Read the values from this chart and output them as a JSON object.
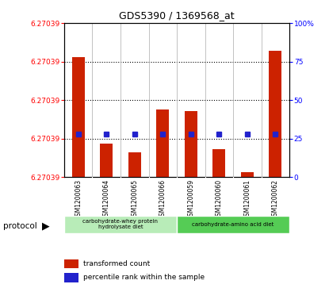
{
  "title": "GDS5390 / 1369568_at",
  "samples": [
    "GSM1200063",
    "GSM1200064",
    "GSM1200065",
    "GSM1200066",
    "GSM1200059",
    "GSM1200060",
    "GSM1200061",
    "GSM1200062"
  ],
  "red_values_pct": [
    78,
    22,
    16,
    44,
    43,
    18,
    3,
    82
  ],
  "blue_percentiles": [
    28,
    28,
    28,
    28,
    28,
    28,
    28,
    28
  ],
  "y_left_labels": [
    "6.27039",
    "6.27039",
    "6.27039",
    "6.27039",
    "6.27039"
  ],
  "y_left_tick_pct": [
    100,
    75,
    50,
    25,
    0
  ],
  "right_y_ticks": [
    100,
    75,
    50,
    25,
    0
  ],
  "right_y_labels": [
    "100%",
    "75",
    "50",
    "25",
    "0"
  ],
  "grid_pct": [
    75,
    50,
    25
  ],
  "bar_color": "#cc2200",
  "blue_color": "#2222cc",
  "group1_color": "#b8ecb8",
  "group2_color": "#55cc55",
  "group1_label": "carbohydrate-whey protein\nhydrolysate diet",
  "group2_label": "carbohydrate-amino acid diet",
  "legend_red": "transformed count",
  "legend_blue": "percentile rank within the sample",
  "xtick_bg": "#cccccc",
  "plot_bg": "#ffffff"
}
